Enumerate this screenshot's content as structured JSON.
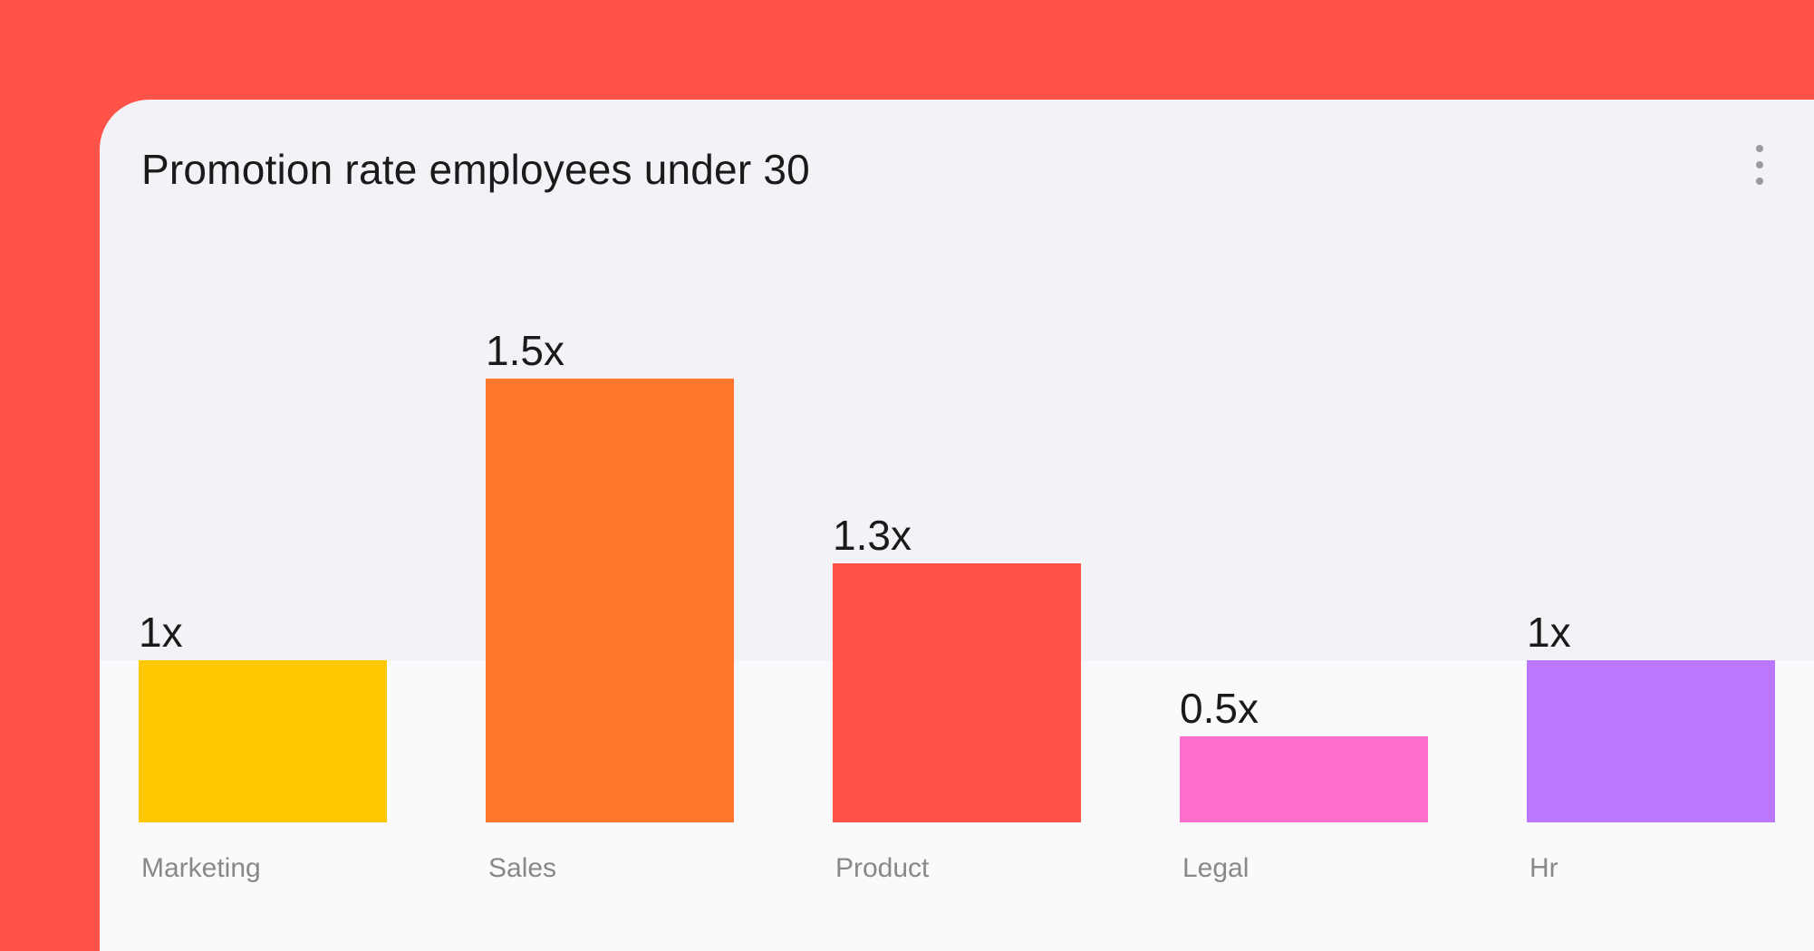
{
  "chart_data": {
    "type": "bar",
    "title": "Promotion rate employees under 30",
    "categories": [
      "Marketing",
      "Sales",
      "Product",
      "Legal",
      "Hr"
    ],
    "values": [
      1,
      1.5,
      1.3,
      0.5,
      1
    ],
    "value_labels": [
      "1x",
      "1.5x",
      "1.3x",
      "0.5x",
      "1x"
    ],
    "colors": [
      "#ffc800",
      "#ff772d",
      "#ff5349",
      "#ff70cc",
      "#bb77ff"
    ],
    "xlabel": "",
    "ylabel": "",
    "grid": false
  },
  "menu_icon": "more-vertical-icon"
}
